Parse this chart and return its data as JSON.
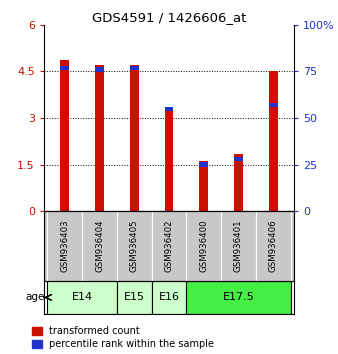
{
  "title": "GDS4591 / 1426606_at",
  "samples": [
    "GSM936403",
    "GSM936404",
    "GSM936405",
    "GSM936402",
    "GSM936400",
    "GSM936401",
    "GSM936406"
  ],
  "red_values": [
    4.85,
    4.7,
    4.7,
    3.3,
    1.62,
    1.85,
    4.5
  ],
  "percentile_values": [
    77,
    76,
    77,
    55,
    25,
    28,
    57
  ],
  "red_color": "#cc1100",
  "blue_color": "#2233cc",
  "ylim_left": [
    0,
    6
  ],
  "ylim_right": [
    0,
    100
  ],
  "yticks_left": [
    0,
    1.5,
    3,
    4.5,
    6
  ],
  "ytick_labels_left": [
    "0",
    "1.5",
    "3",
    "4.5",
    "6"
  ],
  "yticks_right": [
    0,
    25,
    50,
    75,
    100
  ],
  "ytick_labels_right": [
    "0",
    "25",
    "50",
    "75",
    "100%"
  ],
  "age_groups": [
    {
      "label": "E14",
      "indices": [
        0,
        1
      ],
      "color": "#ccffcc"
    },
    {
      "label": "E15",
      "indices": [
        2
      ],
      "color": "#ccffcc"
    },
    {
      "label": "E16",
      "indices": [
        3
      ],
      "color": "#ccffcc"
    },
    {
      "label": "E17.5",
      "indices": [
        4,
        5,
        6
      ],
      "color": "#44ee44"
    }
  ],
  "age_label": "age",
  "legend_red": "transformed count",
  "legend_blue": "percentile rank within the sample",
  "bar_width": 0.25,
  "bg_color": "#ffffff",
  "sample_area_color": "#c8c8c8",
  "plot_bg": "#ffffff"
}
